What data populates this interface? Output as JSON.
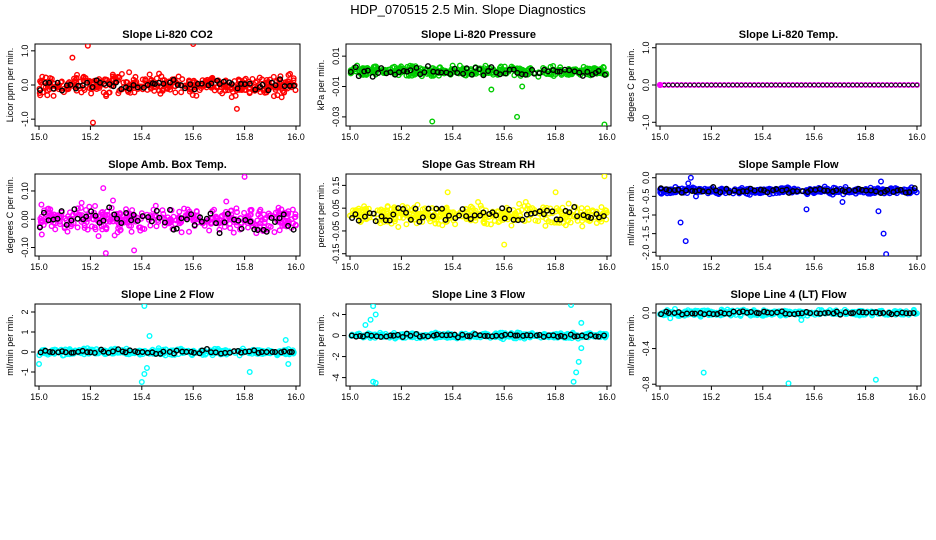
{
  "suptitle": "HDP_070515  2.5 Min. Slope Diagnostics",
  "xaxis": {
    "min": 15.0,
    "max": 16.0,
    "ticks": [
      "15.0",
      "15.2",
      "15.4",
      "15.6",
      "15.8",
      "16.0"
    ]
  },
  "chart_data": [
    {
      "type": "scatter",
      "title": "Slope Li-820 CO2",
      "ylabel": "Licor ppm per min.",
      "color": "#ff0000",
      "ylim": [
        -1.2,
        1.2
      ],
      "yticks": [
        "-1.0",
        "0.0",
        "1.0"
      ],
      "ytick_values": [
        -1.0,
        0.0,
        1.0
      ],
      "center": 0.0,
      "spread": 0.28,
      "black_spread": 0.15,
      "outliers": [
        [
          15.19,
          1.15
        ],
        [
          15.21,
          -1.1
        ],
        [
          15.13,
          0.8
        ],
        [
          15.6,
          1.2
        ],
        [
          15.77,
          -0.7
        ]
      ]
    },
    {
      "type": "scatter",
      "title": "Slope Li-820 Pressure",
      "ylabel": "kPa per min.",
      "color": "#00cc00",
      "ylim": [
        -0.036,
        0.018
      ],
      "yticks": [
        "-0.03",
        "-0.01",
        "0.01"
      ],
      "ytick_values": [
        -0.03,
        -0.01,
        0.01
      ],
      "center": 0.0,
      "spread": 0.003,
      "black_spread": 0.003,
      "outliers": [
        [
          15.32,
          -0.033
        ],
        [
          15.65,
          -0.03
        ],
        [
          15.99,
          -0.035
        ],
        [
          15.55,
          -0.012
        ],
        [
          15.67,
          -0.01
        ]
      ]
    },
    {
      "type": "scatter",
      "title": "Slope Li-820 Temp.",
      "ylabel": "degees C per min.",
      "color": "#ff00ff",
      "ylim": [
        -1.1,
        1.1
      ],
      "yticks": [
        "-1.0",
        "0.0",
        "1.0"
      ],
      "ytick_values": [
        -1.0,
        0.0,
        1.0
      ],
      "center": 0.0,
      "spread": 0.0,
      "black_spread": 0.0,
      "outliers": []
    },
    {
      "type": "scatter",
      "title": "Slope Amb. Box Temp.",
      "ylabel": "degrees C per min.",
      "color": "#ff00ff",
      "ylim": [
        -0.13,
        0.16
      ],
      "yticks": [
        "-0.10",
        "0.00",
        "0.10"
      ],
      "ytick_values": [
        -0.1,
        0.0,
        0.1
      ],
      "center": 0.0,
      "spread": 0.045,
      "black_spread": 0.04,
      "outliers": [
        [
          15.26,
          -0.12
        ],
        [
          15.25,
          0.11
        ],
        [
          15.8,
          0.15
        ],
        [
          15.37,
          -0.11
        ]
      ]
    },
    {
      "type": "scatter",
      "title": "Slope Gas Stream RH",
      "ylabel": "percent per min.",
      "color": "#ffff00",
      "ylim": [
        -0.16,
        0.2
      ],
      "yticks": [
        "-0.15",
        "-0.05",
        "0.05",
        "0.15"
      ],
      "ytick_values": [
        -0.15,
        -0.05,
        0.05,
        0.15
      ],
      "center": 0.02,
      "spread": 0.04,
      "black_spread": 0.035,
      "outliers": [
        [
          15.99,
          0.19
        ],
        [
          15.38,
          0.12
        ],
        [
          15.6,
          -0.11
        ],
        [
          15.8,
          0.12
        ]
      ]
    },
    {
      "type": "scatter",
      "title": "Slope Sample Flow",
      "ylabel": "ml/min per min.",
      "color": "#0000ff",
      "ylim": [
        -2.1,
        0.1
      ],
      "yticks": [
        "-2.0",
        "-1.5",
        "-1.0",
        "-0.5",
        "0.0"
      ],
      "ytick_values": [
        -2.0,
        -1.5,
        -1.0,
        -0.5,
        0.0
      ],
      "center": -0.35,
      "spread": 0.08,
      "black_spread": 0.07,
      "outliers": [
        [
          15.12,
          0.0
        ],
        [
          15.11,
          -0.15
        ],
        [
          15.08,
          -1.2
        ],
        [
          15.1,
          -1.7
        ],
        [
          15.06,
          -0.25
        ],
        [
          15.05,
          -0.4
        ],
        [
          15.86,
          -0.1
        ],
        [
          15.87,
          -1.5
        ],
        [
          15.88,
          -2.05
        ],
        [
          15.85,
          -0.9
        ],
        [
          15.14,
          -0.5
        ],
        [
          15.57,
          -0.85
        ],
        [
          15.71,
          -0.65
        ]
      ]
    },
    {
      "type": "scatter",
      "title": "Slope Line 2 Flow",
      "ylabel": "ml/min per min.",
      "color": "#00ffff",
      "ylim": [
        -1.7,
        2.4
      ],
      "yticks": [
        "-1",
        "0",
        "1",
        "2"
      ],
      "ytick_values": [
        -1,
        0,
        1,
        2
      ],
      "center": 0.0,
      "spread": 0.15,
      "black_spread": 0.1,
      "outliers": [
        [
          15.41,
          2.3
        ],
        [
          15.4,
          -1.5
        ],
        [
          15.41,
          -1.1
        ],
        [
          15.42,
          -0.8
        ],
        [
          15.43,
          0.8
        ],
        [
          15.82,
          -1.0
        ],
        [
          15.0,
          -0.6
        ],
        [
          15.97,
          -0.6
        ],
        [
          15.96,
          0.6
        ]
      ]
    },
    {
      "type": "scatter",
      "title": "Slope Line 3 Flow",
      "ylabel": "ml/min per min.",
      "color": "#00ffff",
      "ylim": [
        -4.8,
        3.0
      ],
      "yticks": [
        "-4",
        "-2",
        "0",
        "2"
      ],
      "ytick_values": [
        -4,
        -2,
        0,
        2
      ],
      "center": 0.0,
      "spread": 0.25,
      "black_spread": 0.15,
      "outliers": [
        [
          15.09,
          2.8
        ],
        [
          15.1,
          2.0
        ],
        [
          15.08,
          1.5
        ],
        [
          15.09,
          -4.4
        ],
        [
          15.1,
          -4.5
        ],
        [
          15.87,
          -4.4
        ],
        [
          15.88,
          -3.5
        ],
        [
          15.89,
          -2.5
        ],
        [
          15.86,
          2.9
        ],
        [
          15.9,
          1.2
        ],
        [
          15.9,
          -1.2
        ],
        [
          15.06,
          1.0
        ]
      ]
    },
    {
      "type": "scatter",
      "title": "Slope Line 4 (LT) Flow",
      "ylabel": "ml/min per min.",
      "color": "#00ffff",
      "ylim": [
        -0.82,
        0.1
      ],
      "yticks": [
        "-0.8",
        "-0.4",
        "0.0"
      ],
      "ytick_values": [
        -0.8,
        -0.4,
        0.0
      ],
      "center": 0.0,
      "spread": 0.03,
      "black_spread": 0.02,
      "outliers": [
        [
          15.17,
          -0.67
        ],
        [
          15.5,
          -0.79
        ],
        [
          15.84,
          -0.75
        ],
        [
          15.04,
          -0.06
        ],
        [
          15.55,
          -0.08
        ]
      ]
    }
  ]
}
